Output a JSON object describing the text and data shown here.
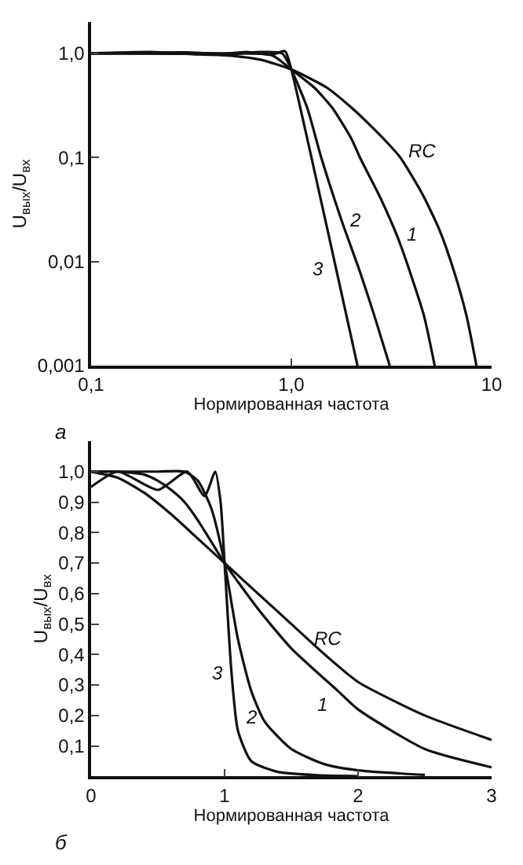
{
  "chart_data": [
    {
      "type": "line",
      "xlabel": "Нормированная частота",
      "ylabel": "U$_{вых}$/U$_{вх}$",
      "log": "xy",
      "line_style": "solid",
      "xlim": [
        0.1,
        10
      ],
      "ylim": [
        0.001,
        2
      ],
      "xticks": [
        {
          "value": 0.1,
          "label": "0,1"
        },
        {
          "value": 1,
          "label": "1,0"
        },
        10
      ],
      "yticks": [
        {
          "value": 0.001,
          "label": "0,001"
        },
        {
          "value": 0.01,
          "label": "0,01"
        },
        {
          "value": 0.1,
          "label": "0,1"
        },
        {
          "value": 1,
          "label": "1,0"
        }
      ],
      "annotations": [
        "а"
      ],
      "series": [
        {
          "name": "RC",
          "color": "#111111",
          "x": [
            0.1,
            0.3,
            0.5,
            0.7,
            1,
            1.5,
            2,
            2.5,
            3,
            3.5,
            4.5,
            5.5,
            6.5,
            7.5,
            8.4
          ],
          "values": [
            1.0,
            0.99,
            0.95,
            0.87,
            0.7,
            0.47,
            0.3,
            0.2,
            0.14,
            0.1,
            0.045,
            0.02,
            0.008,
            0.003,
            0.001
          ]
        },
        {
          "name": "1",
          "color": "#111111",
          "x": [
            0.1,
            0.5,
            0.8,
            1,
            1.3,
            1.6,
            2,
            2.2,
            2.8,
            3.4,
            4,
            4.6,
            5.2
          ],
          "values": [
            1.0,
            1.0,
            0.96,
            0.7,
            0.47,
            0.3,
            0.15,
            0.1,
            0.04,
            0.017,
            0.007,
            0.003,
            0.001
          ]
        },
        {
          "name": "2",
          "color": "#111111",
          "x": [
            0.1,
            0.3,
            0.5,
            0.7,
            0.9,
            1,
            1.2,
            1.41,
            1.78,
            2.2,
            2.6,
            3.1
          ],
          "values": [
            1.0,
            1.02,
            0.98,
            1.03,
            1.0,
            0.7,
            0.3,
            0.1,
            0.025,
            0.008,
            0.003,
            0.001
          ]
        },
        {
          "name": "3",
          "color": "#111111",
          "x": [
            0.1,
            0.2,
            0.4,
            0.6,
            0.8,
            0.93,
            1,
            1.1,
            1.26,
            1.69,
            2.14
          ],
          "values": [
            1.0,
            1.03,
            0.97,
            1.03,
            0.97,
            1.05,
            0.7,
            0.32,
            0.1,
            0.0078,
            0.001
          ]
        }
      ]
    },
    {
      "type": "line",
      "xlabel": "Нормированная частота",
      "ylabel": "U$_{вых}$/U$_{вх}$",
      "line_style": "solid",
      "xlim": [
        0,
        3
      ],
      "ylim": [
        0,
        1.1
      ],
      "xticks": [
        0,
        1,
        2,
        3
      ],
      "yticks": [
        {
          "value": 0.1,
          "label": "0,1"
        },
        {
          "value": 0.2,
          "label": "0,2"
        },
        {
          "value": 0.3,
          "label": "0,3"
        },
        {
          "value": 0.4,
          "label": "0,4"
        },
        {
          "value": 0.5,
          "label": "0,5"
        },
        {
          "value": 0.6,
          "label": "0,6"
        },
        {
          "value": 0.7,
          "label": "0,7"
        },
        {
          "value": 0.8,
          "label": "0,8"
        },
        {
          "value": 0.9,
          "label": "0,9"
        },
        {
          "value": 1.0,
          "label": "1,0"
        }
      ],
      "annotations": [
        "б"
      ],
      "series": [
        {
          "name": "RC",
          "color": "#111111",
          "x": [
            0,
            0.2,
            0.4,
            0.6,
            0.8,
            1,
            1.25,
            1.5,
            1.75,
            2,
            2.5,
            3
          ],
          "values": [
            1.0,
            0.98,
            0.93,
            0.86,
            0.78,
            0.7,
            0.6,
            0.5,
            0.4,
            0.31,
            0.2,
            0.12
          ]
        },
        {
          "name": "1",
          "color": "#111111",
          "x": [
            0,
            0.2,
            0.4,
            0.5,
            0.6,
            0.7,
            0.8,
            0.9,
            1,
            1.25,
            1.5,
            1.85,
            2,
            2.5,
            3
          ],
          "values": [
            1.0,
            1.0,
            0.99,
            0.97,
            0.94,
            0.9,
            0.84,
            0.77,
            0.7,
            0.55,
            0.42,
            0.28,
            0.22,
            0.09,
            0.03
          ]
        },
        {
          "name": "2",
          "color": "#111111",
          "x": [
            0,
            0.3,
            0.5,
            0.7,
            0.8,
            0.9,
            1,
            1.1,
            1.2,
            1.3,
            1.5,
            1.75,
            2,
            2.5
          ],
          "values": [
            1.0,
            1.0,
            1.0,
            1.0,
            0.97,
            0.88,
            0.7,
            0.45,
            0.28,
            0.18,
            0.09,
            0.04,
            0.02,
            0.005
          ]
        },
        {
          "name": "3",
          "color": "#111111",
          "x": [
            0,
            0.2,
            0.5,
            0.72,
            0.85,
            0.93,
            0.97,
            1,
            1.05,
            1.1,
            1.2,
            1.4,
            1.7,
            2
          ],
          "values": [
            0.95,
            1.0,
            0.94,
            1.0,
            0.92,
            1.0,
            0.9,
            0.7,
            0.35,
            0.15,
            0.05,
            0.015,
            0.004,
            0.001
          ]
        }
      ]
    }
  ]
}
